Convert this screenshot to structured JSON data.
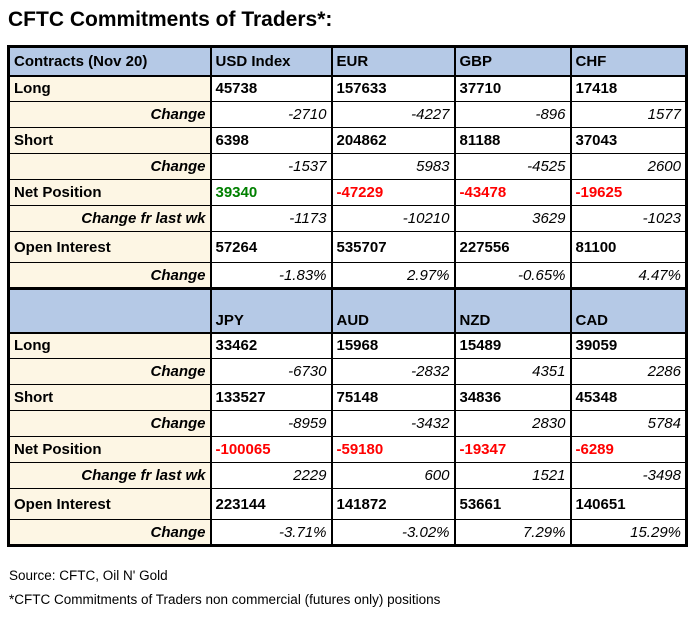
{
  "title": "CFTC Commitments of Traders*:",
  "table": {
    "sections": [
      {
        "header": [
          "Contracts (Nov 20)",
          "USD Index",
          "EUR",
          "GBP",
          "CHF"
        ],
        "rows": [
          {
            "label": "Long",
            "type": "main",
            "values": [
              "45738",
              "157633",
              "37710",
              "17418"
            ]
          },
          {
            "label": "Change",
            "type": "change",
            "values": [
              "-2710",
              "-4227",
              "-896",
              "1577"
            ]
          },
          {
            "label": "Short",
            "type": "main",
            "values": [
              "6398",
              "204862",
              "81188",
              "37043"
            ]
          },
          {
            "label": "Change",
            "type": "change",
            "values": [
              "-1537",
              "5983",
              "-4525",
              "2600"
            ]
          },
          {
            "label": "Net Position",
            "type": "net",
            "values": [
              "39340",
              "-47229",
              "-43478",
              "-19625"
            ]
          },
          {
            "label": "Change fr last wk",
            "type": "change",
            "values": [
              "-1173",
              "-10210",
              "3629",
              "-1023"
            ]
          },
          {
            "label": "Open Interest",
            "type": "open",
            "values": [
              "57264",
              "535707",
              "227556",
              "81100"
            ]
          },
          {
            "label": "Change",
            "type": "change",
            "values": [
              "-1.83%",
              "2.97%",
              "-0.65%",
              "4.47%"
            ]
          }
        ]
      },
      {
        "header": [
          "",
          "JPY",
          "AUD",
          "NZD",
          "CAD"
        ],
        "rows": [
          {
            "label": "Long",
            "type": "main",
            "values": [
              "33462",
              "15968",
              "15489",
              "39059"
            ]
          },
          {
            "label": "Change",
            "type": "change",
            "values": [
              "-6730",
              "-2832",
              "4351",
              "2286"
            ]
          },
          {
            "label": "Short",
            "type": "main",
            "values": [
              "133527",
              "75148",
              "34836",
              "45348"
            ]
          },
          {
            "label": "Change",
            "type": "change",
            "values": [
              "-8959",
              "-3432",
              "2830",
              "5784"
            ]
          },
          {
            "label": "Net Position",
            "type": "net",
            "values": [
              "-100065",
              "-59180",
              "-19347",
              "-6289"
            ]
          },
          {
            "label": "Change fr last wk",
            "type": "change",
            "values": [
              "2229",
              "600",
              "1521",
              "-3498"
            ]
          },
          {
            "label": "Open Interest",
            "type": "open",
            "values": [
              "223144",
              "141872",
              "53661",
              "140651"
            ]
          },
          {
            "label": "Change",
            "type": "change",
            "values": [
              "-3.71%",
              "-3.02%",
              "7.29%",
              "15.29%"
            ]
          }
        ]
      }
    ]
  },
  "footer": {
    "source": "Source: CFTC, Oil N' Gold",
    "note": "*CFTC Commitments of Traders non commercial (futures only) positions"
  },
  "colors": {
    "header_bg": "#b5c9e6",
    "label_bg": "#fdf6e4",
    "positive_green": "#008000",
    "negative_red": "#ff0000",
    "border": "#000000"
  }
}
